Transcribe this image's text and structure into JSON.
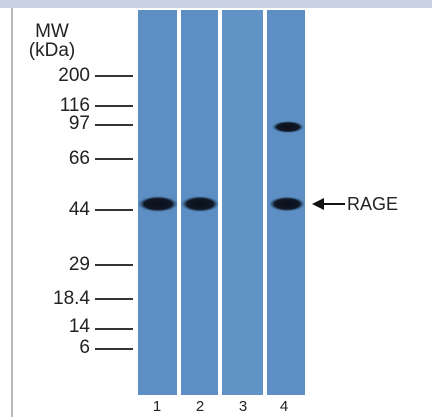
{
  "figure": {
    "mw_label": [
      "MW",
      "(kDa)"
    ],
    "markers": [
      "200",
      "116",
      "97",
      "66",
      "44",
      "29",
      "18.4",
      "14",
      "6"
    ],
    "lanes": [
      "1",
      "2",
      "3",
      "4"
    ],
    "arrow_label": "RAGE"
  }
}
